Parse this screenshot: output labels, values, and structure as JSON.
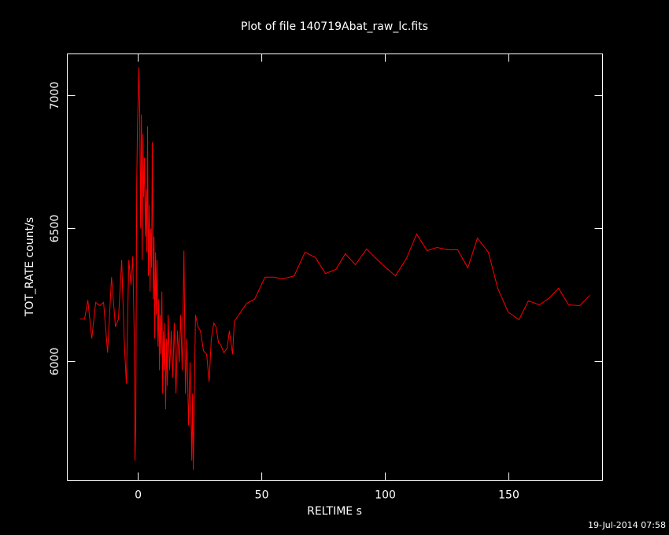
{
  "chart_data": {
    "type": "line",
    "title": "Plot of file 140719Abat_raw_lc.fits",
    "x_label": "RELTIME  s",
    "y_label": "TOT_RATE  count/s",
    "annotation": "19-Jul-2014 07:58",
    "xlim": [
      -28.7,
      187.9
    ],
    "ylim": [
      5553,
      7157
    ],
    "xticks": [
      0,
      50,
      100,
      150
    ],
    "yticks": [
      6000,
      6500,
      7000
    ],
    "series": [
      {
        "color": "#ff0000",
        "x": [
          -23.6,
          -21.7,
          -20.4,
          -18.8,
          -17.2,
          -15.6,
          -14.0,
          -12.4,
          -10.8,
          -9.2,
          -8.0,
          -6.7,
          -5.7,
          -4.8,
          -3.8,
          -2.9,
          -2.2,
          -1.6,
          -1.3,
          -1.0,
          -0.6,
          -0.3,
          0.3,
          0.6,
          1.0,
          1.3,
          1.6,
          1.9,
          2.2,
          2.5,
          2.9,
          3.2,
          3.5,
          3.8,
          4.1,
          4.5,
          4.8,
          5.1,
          5.4,
          5.7,
          6.1,
          6.4,
          6.7,
          7.0,
          7.3,
          7.6,
          8.0,
          8.3,
          8.6,
          8.9,
          9.2,
          9.6,
          9.9,
          10.2,
          10.5,
          10.8,
          11.1,
          11.5,
          11.8,
          12.1,
          12.7,
          13.4,
          14.0,
          14.6,
          15.3,
          15.9,
          16.6,
          17.2,
          17.8,
          18.5,
          19.1,
          19.7,
          20.4,
          21.0,
          21.7,
          22.0,
          22.3,
          22.6,
          23.2,
          24.2,
          25.2,
          26.4,
          27.7,
          28.7,
          29.6,
          30.6,
          31.5,
          32.5,
          33.4,
          34.7,
          36.0,
          36.9,
          38.2,
          38.9,
          43.9,
          47.1,
          51.3,
          54.5,
          58.6,
          63.1,
          67.5,
          71.7,
          75.8,
          80.0,
          83.8,
          87.9,
          92.4,
          96.8,
          104.1,
          108.6,
          112.7,
          116.9,
          121.0,
          125.2,
          129.3,
          133.4,
          137.3,
          141.7,
          145.5,
          149.7,
          154.1,
          157.9,
          162.4,
          166.5,
          170.1,
          174.2,
          178.7,
          182.8
        ],
        "values": [
          6160,
          6160,
          6231,
          6086,
          6222,
          6210,
          6222,
          6033,
          6317,
          6130,
          6160,
          6382,
          6086,
          5917,
          6382,
          6287,
          6396,
          6086,
          5627,
          5760,
          6669,
          6885,
          7107,
          6950,
          6500,
          6929,
          6382,
          6855,
          6618,
          6766,
          6470,
          6648,
          6411,
          6885,
          6322,
          6589,
          6263,
          6500,
          6352,
          6825,
          6234,
          6470,
          6086,
          6411,
          6175,
          6382,
          6056,
          6234,
          5967,
          6175,
          6027,
          6263,
          5879,
          6115,
          5967,
          6145,
          5820,
          6086,
          5908,
          6175,
          5967,
          6115,
          5938,
          6145,
          5879,
          6115,
          5997,
          6175,
          5967,
          6417,
          5879,
          6086,
          5760,
          5997,
          5627,
          5879,
          5592,
          5820,
          6175,
          6130,
          6115,
          6041,
          6027,
          5923,
          6086,
          6145,
          6130,
          6071,
          6062,
          6033,
          6050,
          6115,
          6027,
          6151,
          6219,
          6234,
          6317,
          6317,
          6311,
          6322,
          6411,
          6391,
          6331,
          6346,
          6405,
          6364,
          6423,
          6382,
          6322,
          6388,
          6479,
          6417,
          6429,
          6420,
          6420,
          6352,
          6464,
          6411,
          6275,
          6186,
          6157,
          6228,
          6213,
          6240,
          6275,
          6213,
          6210,
          6249
        ]
      }
    ]
  }
}
